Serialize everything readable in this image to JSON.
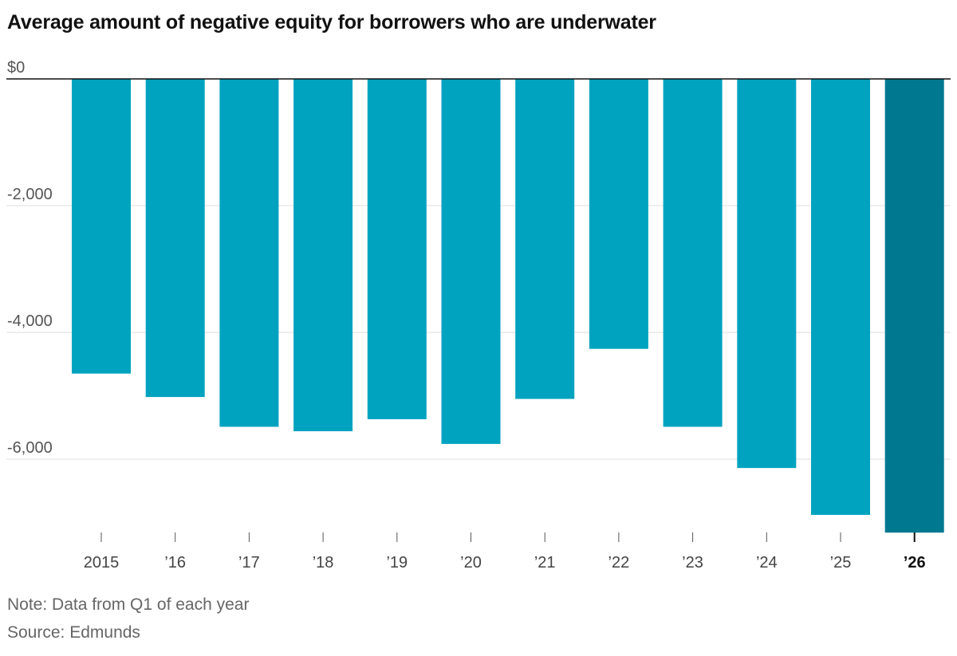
{
  "chart_data": {
    "type": "bar",
    "title": "Average amount of negative equity for borrowers who are underwater",
    "categories": [
      "2015",
      "’16",
      "’17",
      "’18",
      "’19",
      "’20",
      "’21",
      "’22",
      "’23",
      "’24",
      "’25",
      "’26"
    ],
    "values": [
      -4650,
      -5020,
      -5490,
      -5560,
      -5370,
      -5760,
      -5050,
      -4260,
      -5490,
      -6140,
      -6880,
      -7160
    ],
    "highlight_index": 11,
    "ylim": [
      -7400,
      0
    ],
    "yticks": [
      {
        "value": 0,
        "label": "$0"
      },
      {
        "value": -2000,
        "label": "-2,000"
      },
      {
        "value": -4000,
        "label": "-4,000"
      },
      {
        "value": -6000,
        "label": "-6,000"
      }
    ],
    "xlabel": "",
    "ylabel": "",
    "grid": true,
    "colors": {
      "bar": "#00a3bf",
      "highlight": "#007890",
      "grid": "#dddddd",
      "baseline": "#111111"
    }
  },
  "footer": {
    "note": "Note: Data from Q1 of each year",
    "source": "Source: Edmunds"
  }
}
